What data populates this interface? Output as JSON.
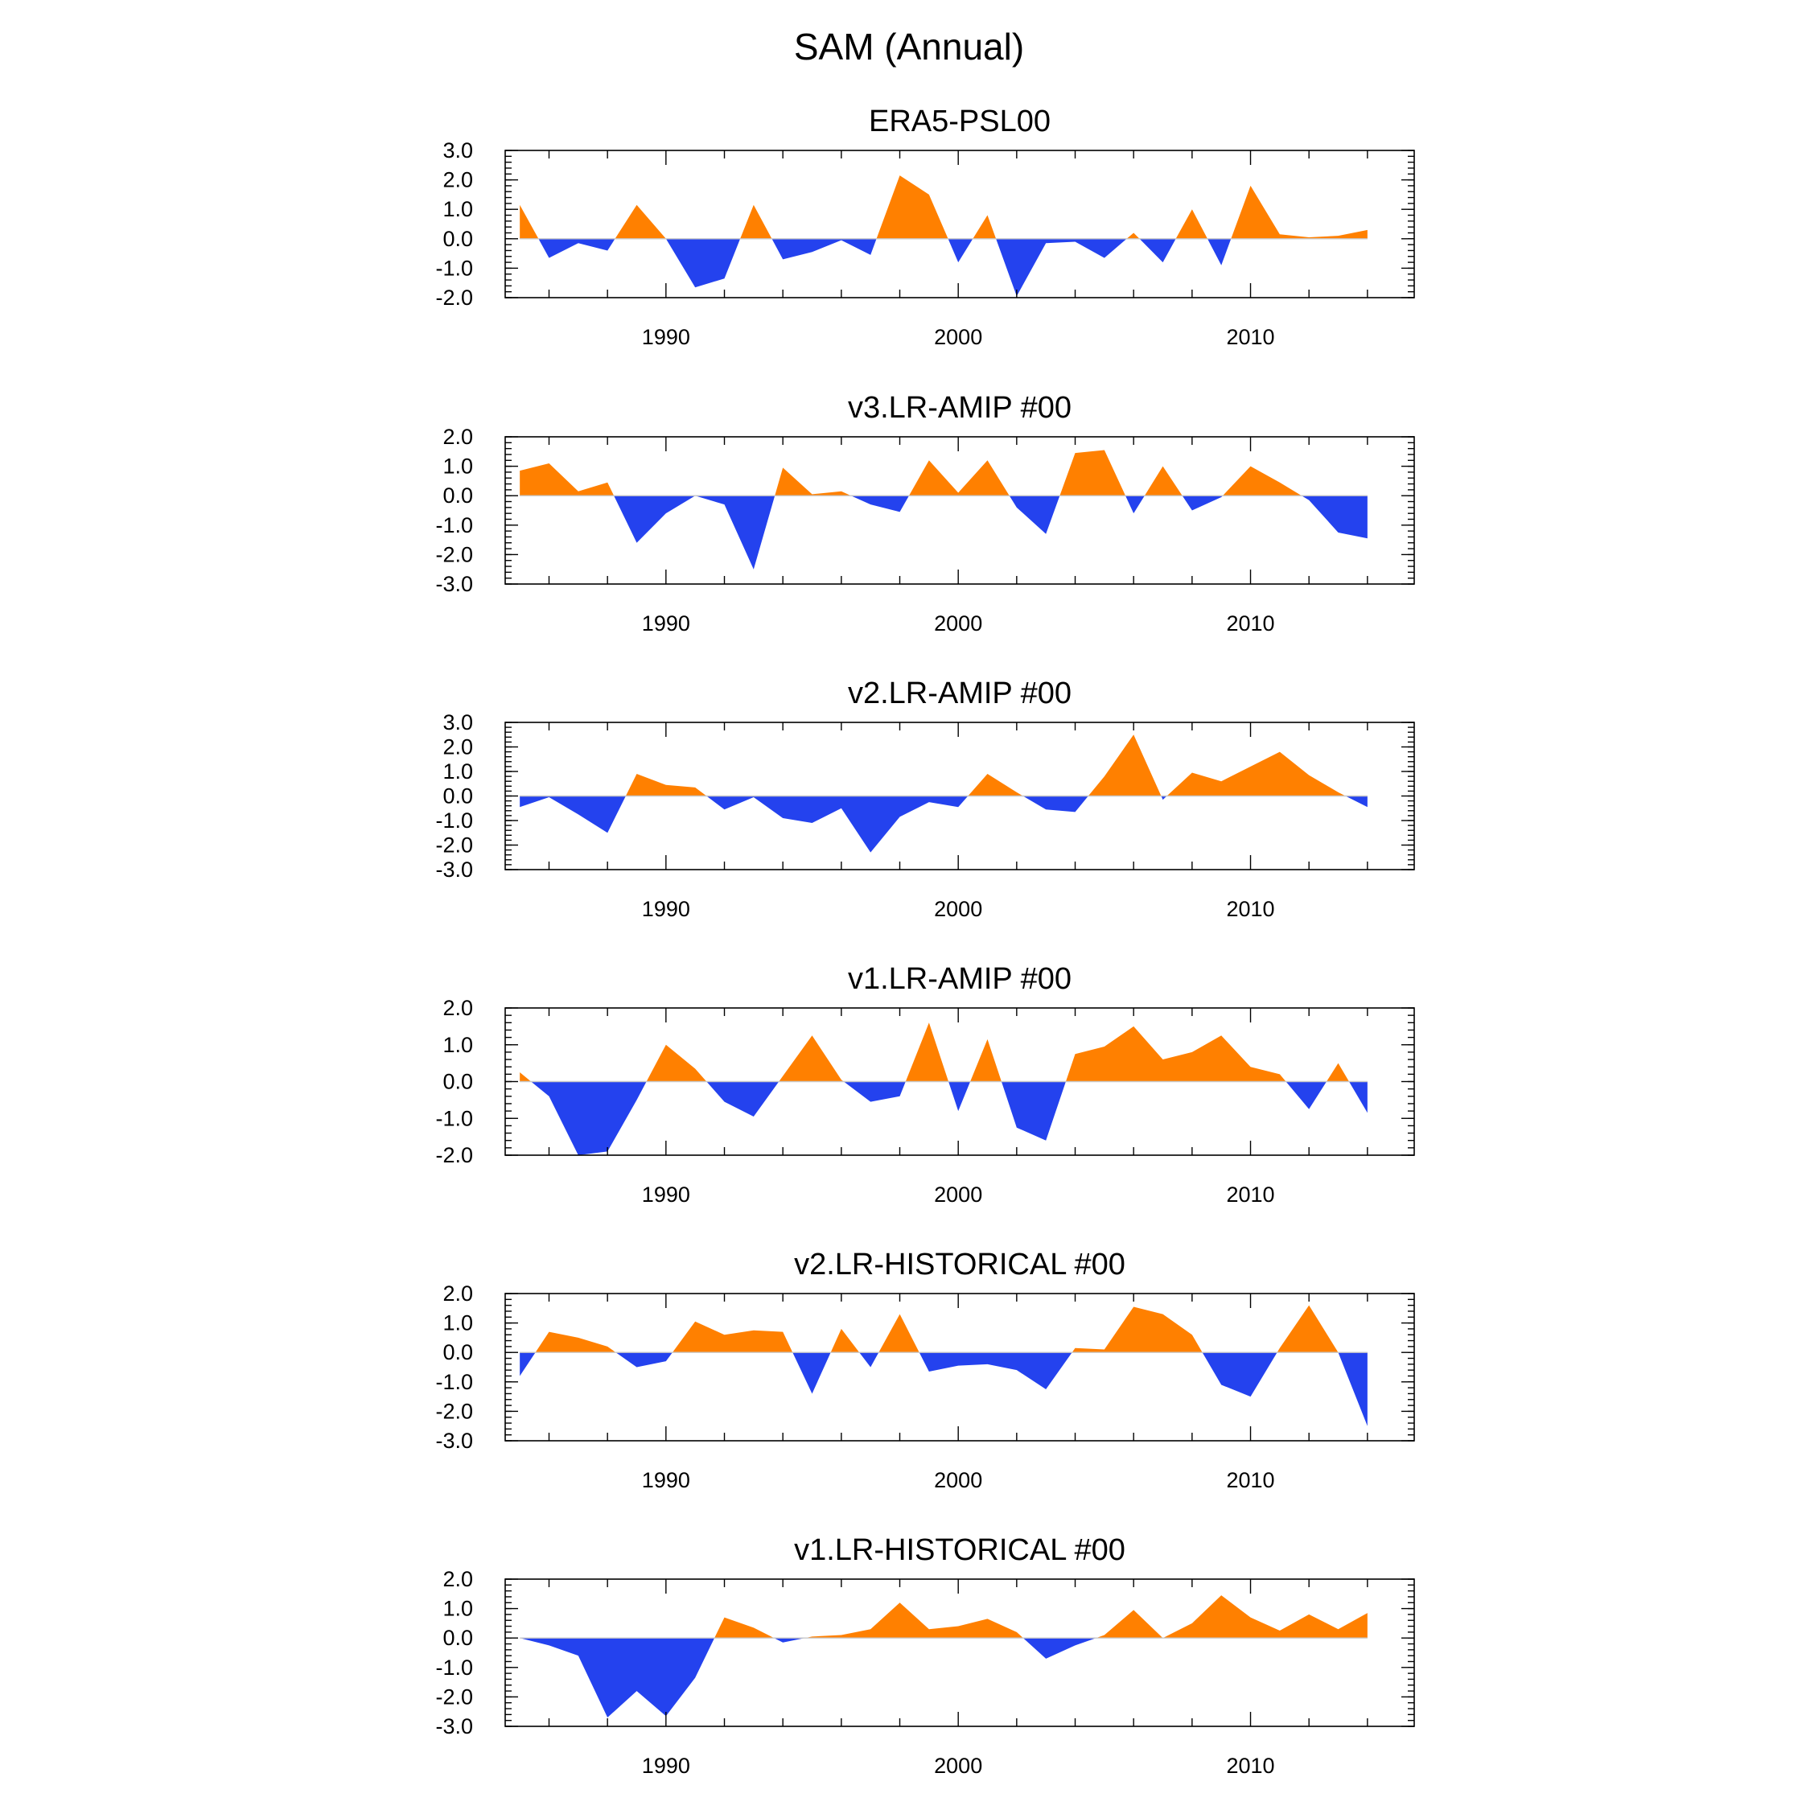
{
  "figure": {
    "title": "SAM (Annual)"
  },
  "colors": {
    "positive": "#ff8000",
    "negative": "#2442ee",
    "zero_line": "#c8c8c8"
  },
  "chart_data": [
    {
      "type": "area",
      "title": "ERA5-PSL00",
      "xlabel": "",
      "ylabel": "",
      "xlim": [
        1984.5,
        2015.6
      ],
      "ylim": [
        -2.0,
        3.0
      ],
      "yticks": [
        -2.0,
        -1.0,
        0.0,
        1.0,
        2.0,
        3.0
      ],
      "ytick_labels": [
        "-2.0",
        "-1.0",
        "0.0",
        "1.0",
        "2.0",
        "3.0"
      ],
      "xticks": [
        1990,
        2000,
        2010
      ],
      "xtick_labels": [
        "1990",
        "2000",
        "2010"
      ],
      "x": [
        1985,
        1986,
        1987,
        1988,
        1989,
        1990,
        1991,
        1992,
        1993,
        1994,
        1995,
        1996,
        1997,
        1998,
        1999,
        2000,
        2001,
        2002,
        2003,
        2004,
        2005,
        2006,
        2007,
        2008,
        2009,
        2010,
        2011,
        2012,
        2013,
        2014
      ],
      "values": [
        1.15,
        -0.65,
        -0.15,
        -0.4,
        1.15,
        0.0,
        -1.65,
        -1.35,
        1.15,
        -0.7,
        -0.45,
        -0.05,
        -0.55,
        2.15,
        1.5,
        -0.8,
        0.8,
        -1.95,
        -0.15,
        -0.1,
        -0.65,
        0.2,
        -0.8,
        1.0,
        -0.9,
        1.8,
        0.15,
        0.05,
        0.1,
        0.3
      ]
    },
    {
      "type": "area",
      "title": "v3.LR-AMIP  #00",
      "xlabel": "",
      "ylabel": "",
      "xlim": [
        1984.5,
        2015.6
      ],
      "ylim": [
        -3.0,
        2.0
      ],
      "yticks": [
        -3.0,
        -2.0,
        -1.0,
        0.0,
        1.0,
        2.0
      ],
      "ytick_labels": [
        "-3.0",
        "-2.0",
        "-1.0",
        "0.0",
        "1.0",
        "2.0"
      ],
      "xticks": [
        1990,
        2000,
        2010
      ],
      "xtick_labels": [
        "1990",
        "2000",
        "2010"
      ],
      "x": [
        1985,
        1986,
        1987,
        1988,
        1989,
        1990,
        1991,
        1992,
        1993,
        1994,
        1995,
        1996,
        1997,
        1998,
        1999,
        2000,
        2001,
        2002,
        2003,
        2004,
        2005,
        2006,
        2007,
        2008,
        2009,
        2010,
        2011,
        2012,
        2013,
        2014
      ],
      "values": [
        0.85,
        1.1,
        0.15,
        0.45,
        -1.6,
        -0.6,
        0.0,
        -0.3,
        -2.5,
        0.95,
        0.05,
        0.15,
        -0.3,
        -0.55,
        1.2,
        0.1,
        1.2,
        -0.4,
        -1.3,
        1.45,
        1.55,
        -0.6,
        1.0,
        -0.5,
        -0.05,
        1.0,
        0.45,
        -0.15,
        -1.25,
        -1.45
      ]
    },
    {
      "type": "area",
      "title": "v2.LR-AMIP  #00",
      "xlabel": "",
      "ylabel": "",
      "xlim": [
        1984.5,
        2015.6
      ],
      "ylim": [
        -3.0,
        3.0
      ],
      "yticks": [
        -3.0,
        -2.0,
        -1.0,
        0.0,
        1.0,
        2.0,
        3.0
      ],
      "ytick_labels": [
        "-3.0",
        "-2.0",
        "-1.0",
        "0.0",
        "1.0",
        "2.0",
        "3.0"
      ],
      "xticks": [
        1990,
        2000,
        2010
      ],
      "xtick_labels": [
        "1990",
        "2000",
        "2010"
      ],
      "x": [
        1985,
        1986,
        1987,
        1988,
        1989,
        1990,
        1991,
        1992,
        1993,
        1994,
        1995,
        1996,
        1997,
        1998,
        1999,
        2000,
        2001,
        2002,
        2003,
        2004,
        2005,
        2006,
        2007,
        2008,
        2009,
        2010,
        2011,
        2012,
        2013,
        2014
      ],
      "values": [
        -0.45,
        -0.05,
        -0.75,
        -1.5,
        0.9,
        0.45,
        0.35,
        -0.55,
        -0.05,
        -0.9,
        -1.1,
        -0.5,
        -2.3,
        -0.85,
        -0.25,
        -0.45,
        0.9,
        0.15,
        -0.55,
        -0.65,
        0.8,
        2.5,
        -0.15,
        0.95,
        0.6,
        1.2,
        1.8,
        0.85,
        0.15,
        -0.45
      ]
    },
    {
      "type": "area",
      "title": "v1.LR-AMIP  #00",
      "xlabel": "",
      "ylabel": "",
      "xlim": [
        1984.5,
        2015.6
      ],
      "ylim": [
        -2.0,
        2.0
      ],
      "yticks": [
        -2.0,
        -1.0,
        0.0,
        1.0,
        2.0
      ],
      "ytick_labels": [
        "-2.0",
        "-1.0",
        "0.0",
        "1.0",
        "2.0"
      ],
      "xticks": [
        1990,
        2000,
        2010
      ],
      "xtick_labels": [
        "1990",
        "2000",
        "2010"
      ],
      "x": [
        1985,
        1986,
        1987,
        1988,
        1989,
        1990,
        1991,
        1992,
        1993,
        1994,
        1995,
        1996,
        1997,
        1998,
        1999,
        2000,
        2001,
        2002,
        2003,
        2004,
        2005,
        2006,
        2007,
        2008,
        2009,
        2010,
        2011,
        2012,
        2013,
        2014
      ],
      "values": [
        0.25,
        -0.4,
        -2.0,
        -1.9,
        -0.5,
        1.0,
        0.35,
        -0.55,
        -0.95,
        0.15,
        1.25,
        0.05,
        -0.55,
        -0.4,
        1.6,
        -0.8,
        1.15,
        -1.25,
        -1.6,
        0.75,
        0.95,
        1.5,
        0.6,
        0.8,
        1.25,
        0.4,
        0.2,
        -0.75,
        0.5,
        -0.85
      ]
    },
    {
      "type": "area",
      "title": "v2.LR-HISTORICAL  #00",
      "xlabel": "",
      "ylabel": "",
      "xlim": [
        1984.5,
        2015.6
      ],
      "ylim": [
        -3.0,
        2.0
      ],
      "yticks": [
        -3.0,
        -2.0,
        -1.0,
        0.0,
        1.0,
        2.0
      ],
      "ytick_labels": [
        "-3.0",
        "-2.0",
        "-1.0",
        "0.0",
        "1.0",
        "2.0"
      ],
      "xticks": [
        1990,
        2000,
        2010
      ],
      "xtick_labels": [
        "1990",
        "2000",
        "2010"
      ],
      "x": [
        1985,
        1986,
        1987,
        1988,
        1989,
        1990,
        1991,
        1992,
        1993,
        1994,
        1995,
        1996,
        1997,
        1998,
        1999,
        2000,
        2001,
        2002,
        2003,
        2004,
        2005,
        2006,
        2007,
        2008,
        2009,
        2010,
        2011,
        2012,
        2013,
        2014
      ],
      "values": [
        -0.8,
        0.7,
        0.5,
        0.2,
        -0.5,
        -0.3,
        1.05,
        0.6,
        0.75,
        0.7,
        -1.4,
        0.8,
        -0.5,
        1.3,
        -0.65,
        -0.45,
        -0.4,
        -0.6,
        -1.25,
        0.15,
        0.1,
        1.55,
        1.3,
        0.6,
        -1.1,
        -1.5,
        0.15,
        1.6,
        0.0,
        -2.5
      ]
    },
    {
      "type": "area",
      "title": "v1.LR-HISTORICAL  #00",
      "xlabel": "",
      "ylabel": "",
      "xlim": [
        1984.5,
        2015.6
      ],
      "ylim": [
        -3.0,
        2.0
      ],
      "yticks": [
        -3.0,
        -2.0,
        -1.0,
        0.0,
        1.0,
        2.0
      ],
      "ytick_labels": [
        "-3.0",
        "-2.0",
        "-1.0",
        "0.0",
        "1.0",
        "2.0"
      ],
      "xticks": [
        1990,
        2000,
        2010
      ],
      "xtick_labels": [
        "1990",
        "2000",
        "2010"
      ],
      "x": [
        1985,
        1986,
        1987,
        1988,
        1989,
        1990,
        1991,
        1992,
        1993,
        1994,
        1995,
        1996,
        1997,
        1998,
        1999,
        2000,
        2001,
        2002,
        2003,
        2004,
        2005,
        2006,
        2007,
        2008,
        2009,
        2010,
        2011,
        2012,
        2013,
        2014
      ],
      "values": [
        0.0,
        -0.25,
        -0.6,
        -2.7,
        -1.8,
        -2.65,
        -1.35,
        0.7,
        0.35,
        -0.15,
        0.05,
        0.1,
        0.3,
        1.2,
        0.3,
        0.4,
        0.65,
        0.2,
        -0.7,
        -0.25,
        0.1,
        0.95,
        0.0,
        0.5,
        1.45,
        0.7,
        0.25,
        0.8,
        0.3,
        0.85
      ]
    }
  ]
}
